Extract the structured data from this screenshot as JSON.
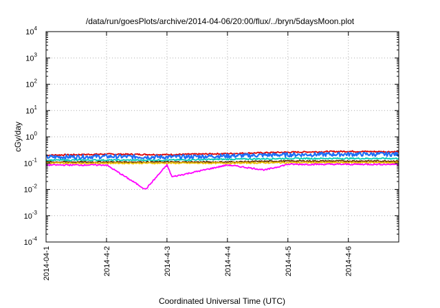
{
  "chart_data": {
    "type": "line",
    "title": "/data/run/goesPlots/archive/2014-04-06/20:00/flux/../bryn/5daysMoon.plot",
    "xlabel": "Coordinated Universal Time (UTC)",
    "ylabel": "cGy/day",
    "yscale": "log",
    "ylim": [
      0.0001,
      10000
    ],
    "y_ticks": [
      {
        "base": "10",
        "exp": "-4",
        "value": 0.0001
      },
      {
        "base": "10",
        "exp": "-3",
        "value": 0.001
      },
      {
        "base": "10",
        "exp": "-2",
        "value": 0.01
      },
      {
        "base": "10",
        "exp": "-1",
        "value": 0.1
      },
      {
        "base": "10",
        "exp": "0",
        "value": 1
      },
      {
        "base": "10",
        "exp": "1",
        "value": 10
      },
      {
        "base": "10",
        "exp": "2",
        "value": 100
      },
      {
        "base": "10",
        "exp": "3",
        "value": 1000
      },
      {
        "base": "10",
        "exp": "4",
        "value": 10000
      }
    ],
    "xlim": [
      "2014-04-01 00:00",
      "2014-04-06 20:00"
    ],
    "x_ticks": [
      {
        "label": "2014-04-1",
        "value": "2014-04-01"
      },
      {
        "label": "2014-4-2",
        "value": "2014-04-02"
      },
      {
        "label": "2014-4-3",
        "value": "2014-04-03"
      },
      {
        "label": "2014-4-4",
        "value": "2014-04-04"
      },
      {
        "label": "2014-4-5",
        "value": "2014-04-05"
      },
      {
        "label": "2014-4-6",
        "value": "2014-04-06"
      }
    ],
    "grid": true,
    "series": [
      {
        "color": "#dd0000",
        "points": [
          [
            "2014-04-01",
            0.2
          ],
          [
            "2014-04-02",
            0.22
          ],
          [
            "2014-04-03",
            0.21
          ],
          [
            "2014-04-04",
            0.23
          ],
          [
            "2014-04-05",
            0.26
          ],
          [
            "2014-04-06",
            0.28
          ],
          [
            "2014-04-06 20:00",
            0.27
          ]
        ]
      },
      {
        "color": "#1e6ff5",
        "points": [
          [
            "2014-04-01",
            0.17
          ],
          [
            "2014-04-02",
            0.18
          ],
          [
            "2014-04-03",
            0.17
          ],
          [
            "2014-04-04",
            0.19
          ],
          [
            "2014-04-05",
            0.21
          ],
          [
            "2014-04-06",
            0.22
          ],
          [
            "2014-04-06 20:00",
            0.22
          ]
        ]
      },
      {
        "color": "#00c8b4",
        "points": [
          [
            "2014-04-01",
            0.13
          ],
          [
            "2014-04-02",
            0.13
          ],
          [
            "2014-04-03",
            0.13
          ],
          [
            "2014-04-04",
            0.14
          ],
          [
            "2014-04-05",
            0.15
          ],
          [
            "2014-04-06",
            0.15
          ],
          [
            "2014-04-06 20:00",
            0.15
          ]
        ]
      },
      {
        "color": "#663300",
        "points": [
          [
            "2014-04-01",
            0.11
          ],
          [
            "2014-04-02",
            0.11
          ],
          [
            "2014-04-03",
            0.11
          ],
          [
            "2014-04-04",
            0.11
          ],
          [
            "2014-04-05",
            0.12
          ],
          [
            "2014-04-06",
            0.12
          ],
          [
            "2014-04-06 20:00",
            0.12
          ]
        ]
      },
      {
        "color": "#f0c000",
        "points": [
          [
            "2014-04-01",
            0.1
          ],
          [
            "2014-04-02",
            0.1
          ],
          [
            "2014-04-03",
            0.1
          ],
          [
            "2014-04-04",
            0.1
          ],
          [
            "2014-04-05",
            0.105
          ],
          [
            "2014-04-06",
            0.105
          ],
          [
            "2014-04-06 20:00",
            0.105
          ]
        ]
      },
      {
        "color": "#ff00ff",
        "points": [
          [
            "2014-04-01",
            0.085
          ],
          [
            "2014-04-02",
            0.085
          ],
          [
            "2014-04-02 15:30",
            0.01
          ],
          [
            "2014-04-03",
            0.085
          ],
          [
            "2014-04-03 02:00",
            0.03
          ],
          [
            "2014-04-04",
            0.085
          ],
          [
            "2014-04-04 15:00",
            0.055
          ],
          [
            "2014-04-05",
            0.09
          ],
          [
            "2014-04-06",
            0.09
          ],
          [
            "2014-04-06 20:00",
            0.09
          ]
        ]
      }
    ]
  }
}
